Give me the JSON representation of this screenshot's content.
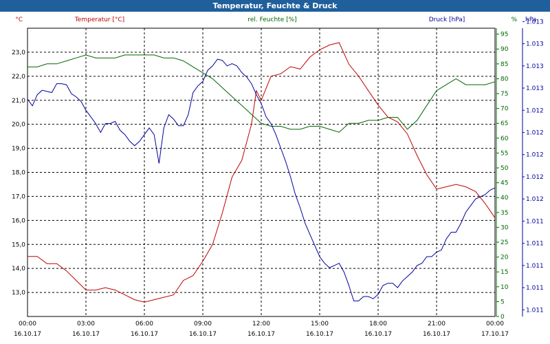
{
  "header": {
    "title": "Temperatur, Feuchte & Druck"
  },
  "colors": {
    "temperature": "#c00000",
    "humidity": "#006400",
    "pressure": "#00009c",
    "header_bg": "#1f5f9c",
    "grid": "#000000"
  },
  "chart_data": {
    "type": "line",
    "title": "Temperatur, Feuchte & Druck",
    "legend": [
      "Temperatur [°C]",
      "rel. Feuchte [%]",
      "Druck [hPa]"
    ],
    "grid": true,
    "axes": {
      "left": {
        "unit": "°C",
        "ylim": [
          12.0,
          24.0
        ],
        "ticks": [
          "13,0",
          "14,0",
          "15,0",
          "16,0",
          "17,0",
          "18,0",
          "19,0",
          "20,0",
          "21,0",
          "22,0",
          "23,0"
        ]
      },
      "humidity": {
        "unit": "%",
        "ylim": [
          0,
          97
        ],
        "ticks": [
          "0",
          "5",
          "10",
          "15",
          "20",
          "25",
          "30",
          "35",
          "40",
          "45",
          "50",
          "55",
          "60",
          "65",
          "70",
          "75",
          "80",
          "85",
          "90",
          "95"
        ]
      },
      "pressure": {
        "unit": "hPa",
        "ylim": [
          0,
          13
        ],
        "ticks": [
          "1.011",
          "1.011",
          "1.011",
          "1.011",
          "1.011",
          "1.012",
          "1.012",
          "1.012",
          "1.012",
          "1.012",
          "1.013",
          "1.013",
          "1.013",
          "1.013"
        ]
      }
    },
    "x_ticks": [
      {
        "time": "00:00",
        "date": "16.10.17"
      },
      {
        "time": "03:00",
        "date": "16.10.17"
      },
      {
        "time": "06:00",
        "date": "16.10.17"
      },
      {
        "time": "09:00",
        "date": "16.10.17"
      },
      {
        "time": "12:00",
        "date": "16.10.17"
      },
      {
        "time": "15:00",
        "date": "16.10.17"
      },
      {
        "time": "18:00",
        "date": "16.10.17"
      },
      {
        "time": "21:00",
        "date": "16.10.17"
      },
      {
        "time": "00:00",
        "date": "17.10.17"
      }
    ],
    "series": [
      {
        "name": "Temperatur [°C]",
        "axis": "left",
        "hours": [
          0,
          0.5,
          1,
          1.5,
          2,
          2.5,
          3,
          3.5,
          4,
          4.5,
          5,
          5.5,
          6,
          6.5,
          7,
          7.5,
          8,
          8.5,
          9,
          9.5,
          10,
          10.5,
          11,
          11.5,
          11.75,
          12,
          12.5,
          13,
          13.5,
          14,
          14.5,
          15,
          15.5,
          16,
          16.5,
          17,
          17.5,
          18,
          18.5,
          19,
          19.5,
          20,
          20.5,
          21,
          21.5,
          22,
          22.5,
          23,
          23.5,
          24
        ],
        "values": [
          14.5,
          14.5,
          14.2,
          14.2,
          13.9,
          13.5,
          13.1,
          13.1,
          13.2,
          13.1,
          12.9,
          12.7,
          12.6,
          12.7,
          12.8,
          12.9,
          13.5,
          13.7,
          14.3,
          15.0,
          16.3,
          17.8,
          18.5,
          20.0,
          21.4,
          21.0,
          22.0,
          22.1,
          22.4,
          22.3,
          22.8,
          23.1,
          23.3,
          23.4,
          22.5,
          22.0,
          21.4,
          20.8,
          20.3,
          20.1,
          19.6,
          18.7,
          17.9,
          17.3,
          17.4,
          17.5,
          17.4,
          17.2,
          16.7,
          16.1
        ]
      },
      {
        "name": "rel. Feuchte [%]",
        "axis": "humidity",
        "hours": [
          0,
          0.5,
          1,
          1.5,
          2,
          2.5,
          3,
          3.5,
          4,
          4.5,
          5,
          5.5,
          6,
          6.5,
          7,
          7.5,
          8,
          8.5,
          9,
          9.5,
          10,
          10.5,
          11,
          11.5,
          12,
          12.5,
          13,
          13.5,
          14,
          14.5,
          15,
          15.5,
          16,
          16.5,
          17,
          17.5,
          18,
          18.5,
          19,
          19.5,
          20,
          20.5,
          21,
          21.5,
          22,
          22.5,
          23,
          23.5,
          24
        ],
        "values": [
          84,
          84,
          85,
          85,
          86,
          87,
          88,
          87,
          87,
          87,
          88,
          88,
          88,
          88,
          87,
          87,
          86,
          84,
          82,
          80,
          77,
          74,
          71,
          68,
          65,
          64,
          64,
          63,
          63,
          64,
          64,
          63,
          62,
          65,
          65,
          66,
          66,
          67,
          67,
          63,
          66,
          71,
          76,
          78,
          80,
          78,
          78,
          78,
          79
        ]
      },
      {
        "name": "Druck [hPa]",
        "axis": "pressure",
        "hours": [
          0,
          0.25,
          0.5,
          0.75,
          1,
          1.25,
          1.5,
          1.75,
          2,
          2.25,
          2.5,
          2.75,
          3,
          3.25,
          3.5,
          3.75,
          4,
          4.25,
          4.5,
          4.75,
          5,
          5.25,
          5.5,
          5.75,
          6,
          6.25,
          6.5,
          6.75,
          7,
          7.25,
          7.5,
          7.75,
          8,
          8.25,
          8.5,
          8.75,
          9,
          9.25,
          9.5,
          9.75,
          10,
          10.25,
          10.5,
          10.75,
          11,
          11.25,
          11.5,
          11.75,
          12,
          12.25,
          12.5,
          12.75,
          13,
          13.25,
          13.5,
          13.75,
          14,
          14.25,
          14.5,
          14.75,
          15,
          15.25,
          15.5,
          15.75,
          16,
          16.25,
          16.5,
          16.75,
          17,
          17.25,
          17.5,
          17.75,
          18,
          18.25,
          18.5,
          18.75,
          19,
          19.25,
          19.5,
          19.75,
          20,
          20.25,
          20.5,
          20.75,
          21,
          21.25,
          21.5,
          21.75,
          22,
          22.25,
          22.5,
          22.75,
          23,
          23.25,
          23.5,
          23.75,
          24
        ],
        "values": [
          9.8,
          9.5,
          10.0,
          10.2,
          10.15,
          10.1,
          10.5,
          10.5,
          10.45,
          10.05,
          9.9,
          9.7,
          9.3,
          9.0,
          8.7,
          8.3,
          8.7,
          8.7,
          8.8,
          8.4,
          8.2,
          7.9,
          7.7,
          7.9,
          8.2,
          8.5,
          8.2,
          6.9,
          8.5,
          9.1,
          8.9,
          8.6,
          8.6,
          9.1,
          10.1,
          10.4,
          10.6,
          11.1,
          11.3,
          11.6,
          11.55,
          11.3,
          11.4,
          11.3,
          11.0,
          10.8,
          10.5,
          10.0,
          9.6,
          9.0,
          8.7,
          8.2,
          7.6,
          7.0,
          6.3,
          5.5,
          4.9,
          4.2,
          3.7,
          3.2,
          2.7,
          2.4,
          2.2,
          2.3,
          2.4,
          2.0,
          1.4,
          0.7,
          0.7,
          0.9,
          0.9,
          0.8,
          1.0,
          1.4,
          1.5,
          1.5,
          1.3,
          1.6,
          1.8,
          2.0,
          2.3,
          2.4,
          2.7,
          2.7,
          2.9,
          3.0,
          3.5,
          3.8,
          3.8,
          4.2,
          4.7,
          5.0,
          5.3,
          5.4,
          5.5,
          5.7,
          5.8
        ]
      }
    ]
  }
}
